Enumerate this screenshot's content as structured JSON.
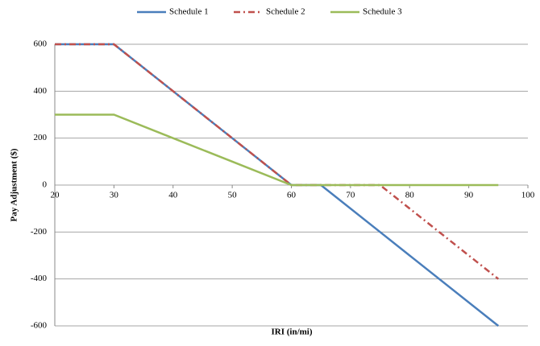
{
  "chart_data": {
    "type": "line",
    "x_label": "IRI (in/mi)",
    "y_label": "Pay Adjustment  ($)",
    "x": [
      20,
      30,
      40,
      50,
      60,
      65,
      75,
      95
    ],
    "series": [
      {
        "name": "Schedule 1",
        "color": "#4a7ebb",
        "line_style": "solid",
        "values": [
          600,
          600,
          400,
          200,
          0,
          0,
          -200,
          -600
        ]
      },
      {
        "name": "Schedule 2",
        "color": "#c0504d",
        "line_style": "dash-dot",
        "values": [
          600,
          600,
          400,
          200,
          0,
          0,
          0,
          -400
        ]
      },
      {
        "name": "Schedule 3",
        "color": "#9bbb59",
        "line_style": "solid",
        "values": [
          300,
          300,
          200,
          100,
          0,
          0,
          0,
          0
        ]
      }
    ],
    "xlim": [
      20,
      100
    ],
    "xticks": [
      20,
      30,
      40,
      50,
      60,
      70,
      80,
      90,
      100
    ],
    "ylim": [
      -600,
      600
    ],
    "yticks": [
      -600,
      -400,
      -200,
      0,
      200,
      400,
      600
    ],
    "grid": true,
    "legend": "top"
  }
}
